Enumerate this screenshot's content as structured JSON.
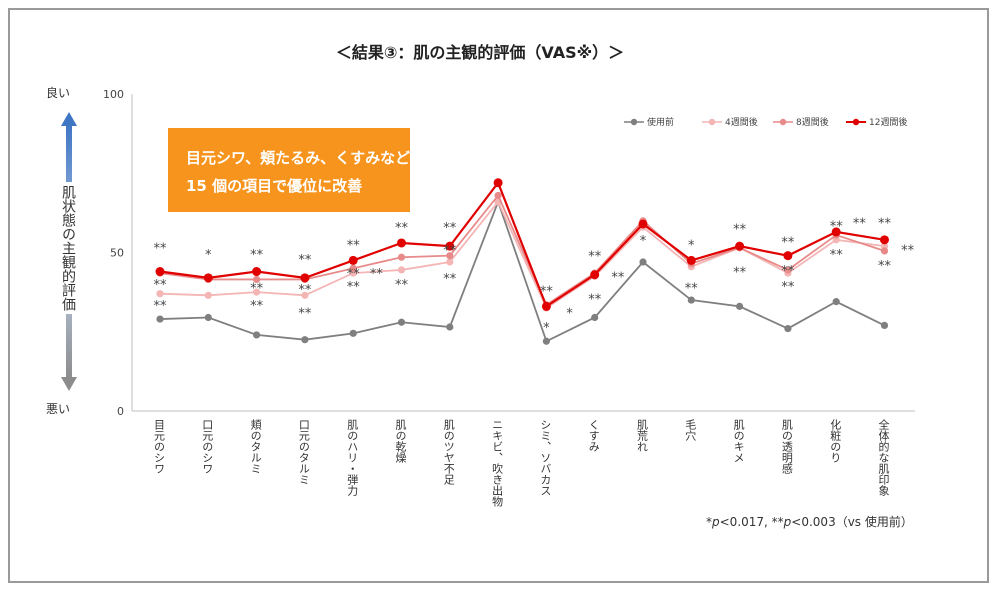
{
  "chart_data": {
    "type": "line",
    "title": "＜結果③：肌の主観的評価（VAS※）＞",
    "ylim": [
      0,
      100
    ],
    "yticks": [
      "0",
      "50",
      "100"
    ],
    "categories": [
      "目元のシワ",
      "口元のシワ",
      "頬のタルミ",
      "口元のタルミ",
      "肌のハリ・弾力",
      "肌の乾燥",
      "肌のツヤ不足",
      "ニキビ、吹き出物",
      "シミ、ソバカス",
      "くすみ",
      "肌荒れ",
      "毛穴",
      "肌のキメ",
      "肌の透明感",
      "化粧のり",
      "全体的な肌印象"
    ],
    "series": [
      {
        "name": "使用前",
        "color": "#7f7f7f",
        "values": [
          29,
          29.5,
          24,
          22.5,
          24.5,
          28,
          26.5,
          66,
          22,
          29.5,
          47,
          35,
          33,
          26,
          34.5,
          27
        ]
      },
      {
        "name": "4週間後",
        "color": "#f4b5b5",
        "values": [
          37,
          36.5,
          37.5,
          36.5,
          43.5,
          44.5,
          47,
          66,
          32.5,
          42.5,
          58,
          45.5,
          51.5,
          43.5,
          54,
          52
        ]
      },
      {
        "name": "8週間後",
        "color": "#e88a8a",
        "values": [
          43.5,
          41.5,
          41.5,
          41.5,
          45,
          48.5,
          49,
          68,
          33.5,
          43.5,
          60,
          46.5,
          51.5,
          44.5,
          55.5,
          50.5
        ]
      },
      {
        "name": "12週間後",
        "color": "#e00000",
        "values": [
          44,
          42,
          44,
          42,
          47.5,
          53,
          52,
          72,
          33,
          43,
          59,
          47.5,
          52,
          49,
          56.5,
          54
        ]
      }
    ],
    "y_axis_top_label": "良い",
    "y_axis_bottom_label": "悪い",
    "y_axis_label": "肌状態の主観的評価",
    "callout_lines": [
      "目元シワ、頬たるみ、くすみなど",
      "15 個の項目で優位に改善"
    ],
    "footnote": {
      "p1_mark": "*",
      "p1_var": "p",
      "p1_text": "<0.017, ",
      "p2_mark": "**",
      "p2_var": "p",
      "p2_text": "<0.003（vs 使用前）"
    },
    "annotations": [
      {
        "text": "**",
        "cat": 0,
        "value": 51.5
      },
      {
        "text": "**",
        "cat": 0,
        "value": 40
      },
      {
        "text": "**",
        "cat": 0,
        "value": 33.5
      },
      {
        "text": "*",
        "cat": 1,
        "value": 49.5
      },
      {
        "text": "**",
        "cat": 2,
        "value": 49.5
      },
      {
        "text": "**",
        "cat": 2,
        "value": 39
      },
      {
        "text": "**",
        "cat": 2,
        "value": 33.5
      },
      {
        "text": "**",
        "cat": 3,
        "value": 48
      },
      {
        "text": "**",
        "cat": 3,
        "value": 38.5
      },
      {
        "text": "**",
        "cat": 3,
        "value": 31
      },
      {
        "text": "**",
        "cat": 4,
        "value": 52.5
      },
      {
        "text": "**",
        "cat": 4,
        "value": 43.5
      },
      {
        "text": "**",
        "cat": 4,
        "value": 39.5
      },
      {
        "text": "**",
        "cat": 5,
        "value": 58
      },
      {
        "text": "**",
        "cat": 5,
        "value": 40
      },
      {
        "text": "**",
        "cat": 6,
        "value": 58
      },
      {
        "text": "**",
        "cat": 6,
        "value": 51
      },
      {
        "text": "**",
        "cat": 6,
        "value": 42
      },
      {
        "text": "**",
        "cat": 8,
        "value": 38
      },
      {
        "text": "*",
        "cat": 8,
        "value": 26.5
      },
      {
        "text": "**",
        "cat": 9,
        "value": 49
      },
      {
        "text": "**",
        "cat": 9,
        "value": 35.5
      },
      {
        "text": "*",
        "cat": 10,
        "value": 54
      },
      {
        "text": "*",
        "cat": 11,
        "value": 52.5
      },
      {
        "text": "**",
        "cat": 11,
        "value": 39
      },
      {
        "text": "**",
        "cat": 12,
        "value": 57.5
      },
      {
        "text": "**",
        "cat": 12,
        "value": 44
      },
      {
        "text": "**",
        "cat": 13,
        "value": 53.5
      },
      {
        "text": "**",
        "cat": 13,
        "value": 44.5
      },
      {
        "text": "**",
        "cat": 13,
        "value": 39.5
      },
      {
        "text": "**",
        "cat": 14,
        "value": 58.5
      },
      {
        "text": "**",
        "cat": 14,
        "value": 49.5
      },
      {
        "text": "**",
        "cat": 15,
        "value": 59.5
      },
      {
        "text": "**",
        "cat": 15,
        "value": 46
      }
    ],
    "annotations_offset": [
      {
        "text": "**",
        "x_after_cat": 4,
        "value": 43.5
      },
      {
        "text": "*",
        "x_after_cat": 8,
        "value": 31
      },
      {
        "text": "**",
        "x_after_cat": 9,
        "value": 42.5
      },
      {
        "text": "**",
        "x_after_cat": 14,
        "value": 59.5
      },
      {
        "text": "**",
        "x_after_cat": 15,
        "value": 51
      }
    ]
  }
}
